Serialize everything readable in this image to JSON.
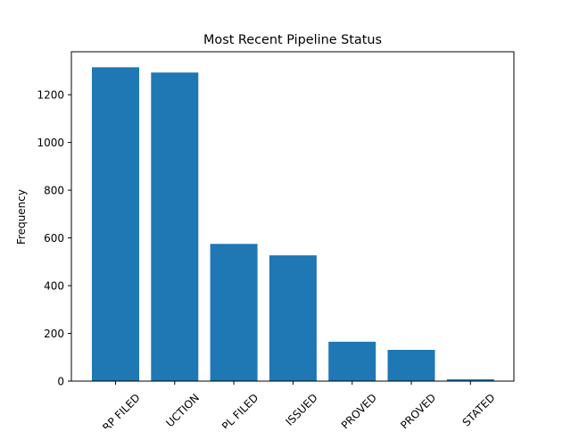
{
  "chart_data": {
    "type": "bar",
    "title": "Most Recent Pipeline Status",
    "xlabel": "",
    "ylabel": "Frequency",
    "categories": [
      "RP FILED",
      "UCTION",
      "PL FILED",
      "ISSUED",
      "PROVED",
      "PROVED",
      "STATED"
    ],
    "values": [
      1315,
      1293,
      575,
      527,
      165,
      131,
      8
    ],
    "ylim": [
      0,
      1380
    ],
    "yticks": [
      0,
      200,
      400,
      600,
      800,
      1000,
      1200
    ],
    "bar_color": "#1f77b4",
    "grid": false,
    "legend": "none"
  }
}
